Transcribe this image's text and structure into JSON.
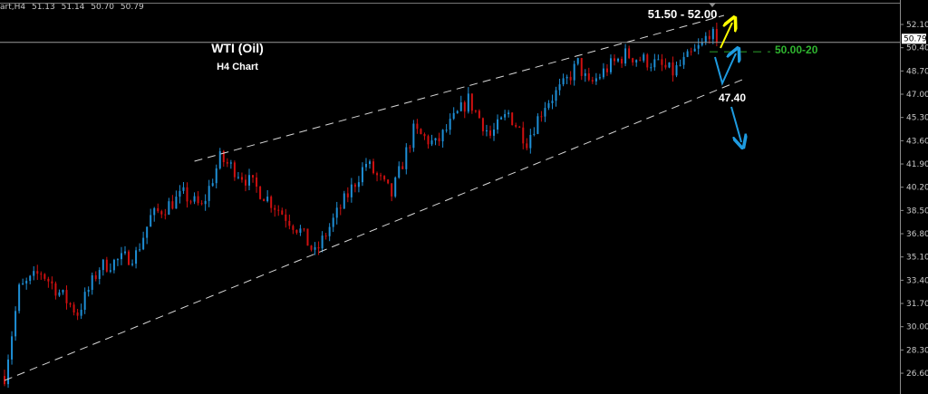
{
  "header": {
    "symbol_period": "art,H4",
    "open": "51.13",
    "high": "51.14",
    "low": "50.70",
    "close": "50.79"
  },
  "chart_data": {
    "type": "candlestick",
    "title": "WTI (Oil)",
    "subtitle": "H4 Chart",
    "ylim": [
      26.0,
      52.9
    ],
    "y_ticks": [
      "52.10",
      "50.40",
      "48.70",
      "47.00",
      "45.30",
      "43.60",
      "41.90",
      "40.20",
      "38.50",
      "36.80",
      "35.10",
      "33.40",
      "31.70",
      "30.00",
      "28.30",
      "26.60"
    ],
    "current_price": "50.79",
    "bar_count": 196,
    "close_path": [
      [
        0,
        26.4
      ],
      [
        2,
        29.5
      ],
      [
        4,
        32.7
      ],
      [
        10,
        34.0
      ],
      [
        20,
        31.0
      ],
      [
        26,
        34.35
      ],
      [
        36,
        35.3
      ],
      [
        40,
        38.0
      ],
      [
        49,
        39.65
      ],
      [
        54,
        38.7
      ],
      [
        59,
        42.3
      ],
      [
        64,
        41.3
      ],
      [
        71,
        39.65
      ],
      [
        81,
        37.0
      ],
      [
        85,
        35.3
      ],
      [
        89,
        37.3
      ],
      [
        94,
        39.65
      ],
      [
        99,
        41.97
      ],
      [
        106,
        39.65
      ],
      [
        112,
        44.3
      ],
      [
        118,
        43.3
      ],
      [
        127,
        46.6
      ],
      [
        133,
        43.95
      ],
      [
        138,
        45.6
      ],
      [
        143,
        43.6
      ],
      [
        148,
        46.3
      ],
      [
        153,
        47.6
      ],
      [
        157,
        49.25
      ],
      [
        160,
        47.6
      ],
      [
        165,
        48.9
      ],
      [
        170,
        49.9
      ],
      [
        178,
        49.25
      ],
      [
        183,
        48.6
      ],
      [
        187,
        49.6
      ],
      [
        191,
        50.6
      ],
      [
        193,
        51.6
      ],
      [
        195,
        50.79
      ]
    ],
    "trendlines": [
      {
        "style": "dashed",
        "color": "#d8d8d8",
        "from": [
          52,
          42.1
        ],
        "to": [
          197,
          52.76
        ]
      },
      {
        "style": "dashed",
        "color": "#d8d8d8",
        "from": [
          0,
          26.07
        ],
        "to": [
          202,
          48.06
        ]
      }
    ],
    "annotations": [
      {
        "text": "51.50 - 52.00",
        "color": "#ffffff"
      },
      {
        "text": "50.00-20",
        "color": "#2fb52f",
        "level": 50.1
      },
      {
        "text": "47.40",
        "color": "#ffffff"
      }
    ],
    "colors": {
      "bull": "#1e8fd6",
      "bear": "#d01010",
      "background": "#000000",
      "axis": "#8c8c8c",
      "arrow_up": "#ffff00",
      "arrow_scenario": "#1e9be0"
    }
  }
}
